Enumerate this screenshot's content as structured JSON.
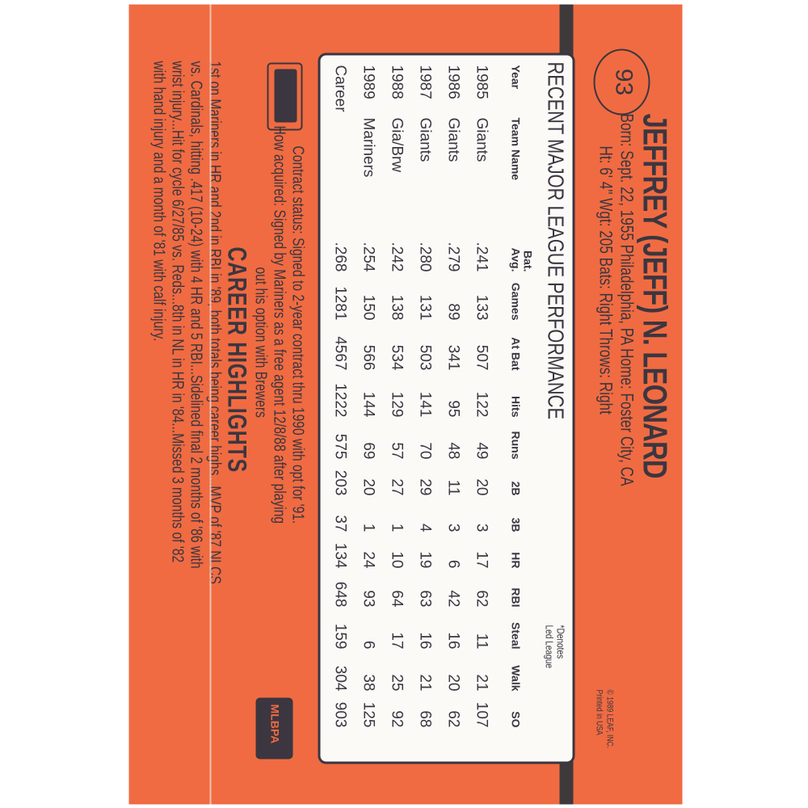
{
  "card_number": "93",
  "player": {
    "name": "JEFFREY (JEFF) N. LEONARD",
    "born_line": "Born: Sept. 22, 1955  Philadelphia, PA  Home: Foster City, CA",
    "physical_line": "Ht: 6' 4\"  Wgt: 205  Bats: Right  Throws: Right"
  },
  "copyright": [
    "© 1989 LEAF, INC.",
    "Printed in USA"
  ],
  "stats": {
    "title": "RECENT MAJOR LEAGUE PERFORMANCE",
    "note": [
      "*Denotes",
      "Led League"
    ],
    "headers": [
      "Year",
      "Team Name",
      "Bat. Avg.",
      "Games",
      "At Bat",
      "Hits",
      "Runs",
      "2B",
      "3B",
      "HR",
      "RBI",
      "Steal",
      "Walk",
      "SO"
    ],
    "rows": [
      [
        "1985",
        "Giants",
        ".241",
        "133",
        "507",
        "122",
        "49",
        "20",
        "3",
        "17",
        "62",
        "11",
        "21",
        "107"
      ],
      [
        "1986",
        "Giants",
        ".279",
        "89",
        "341",
        "95",
        "48",
        "11",
        "3",
        "6",
        "42",
        "16",
        "20",
        "62"
      ],
      [
        "1987",
        "Giants",
        ".280",
        "131",
        "503",
        "141",
        "70",
        "29",
        "4",
        "19",
        "63",
        "16",
        "21",
        "68"
      ],
      [
        "1988",
        "Gia/Brw",
        ".242",
        "138",
        "534",
        "129",
        "57",
        "27",
        "1",
        "10",
        "64",
        "17",
        "25",
        "92"
      ],
      [
        "1989",
        "Mariners",
        ".254",
        "150",
        "566",
        "144",
        "69",
        "20",
        "1",
        "24",
        "93",
        "6",
        "38",
        "125"
      ],
      [
        "Career",
        "",
        ".268",
        "1281",
        "4567",
        "1222",
        "575",
        "203",
        "37",
        "134",
        "648",
        "159",
        "304",
        "903"
      ]
    ]
  },
  "contract_status": "Contract status: Signed to 2-year contract thru 1990 with opt for '91.",
  "how_acquired": [
    "How acquired: Signed by Mariners as a free agent 12/8/88 after playing",
    "out his option with Brewers"
  ],
  "career_highlights": {
    "title": "CAREER HIGHLIGHTS",
    "lines": [
      "1st on Mariners in HR and 2nd in RBI in '89, both totals being career highs...MVP of '87 NLCS",
      "vs. Cardinals, hitting .417 (10-24) with 4 HR and 5 RBI...Sidelined final 2 months of '86 with",
      "wrist injury...Hit for cycle 6/27/85 vs. Reds...8th in NL in HR in '84...Missed 3 months of '82",
      "with hand injury and a month of '81 with calf injury."
    ]
  },
  "logos": [
    "MLB",
    "MLBPA"
  ],
  "colors": {
    "card": "#f06b42",
    "ink": "#3b3640",
    "table_bg": "#fbfaf7"
  }
}
